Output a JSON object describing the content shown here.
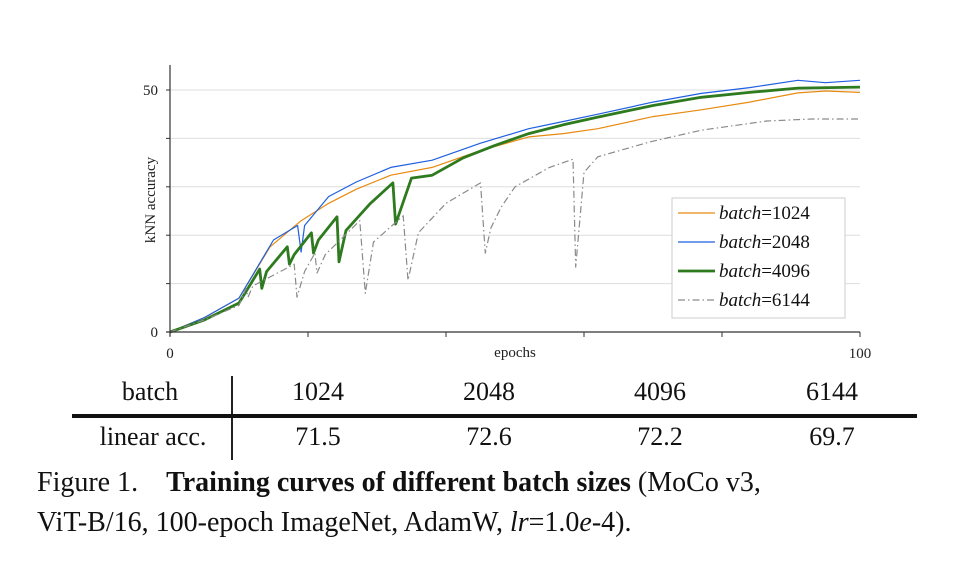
{
  "chart_data": {
    "type": "line",
    "xlabel": "epochs",
    "ylabel": "kNN accuracy",
    "xlim": [
      0,
      100
    ],
    "ylim": [
      0,
      55
    ],
    "x_tick_labels": [
      "0",
      "100"
    ],
    "y_tick_labels": [
      "0",
      "50"
    ],
    "x_ticks": [
      0,
      20,
      40,
      60,
      80,
      100
    ],
    "y_ticks": [
      0,
      10,
      20,
      30,
      40,
      50
    ],
    "grid": "horizontal",
    "legend_position": "bottom-right",
    "series": [
      {
        "name": "batch=1024",
        "name_italic": "batch",
        "name_value": "=1024",
        "color": "#e88a10",
        "style": "solid",
        "points": [
          [
            0,
            0
          ],
          [
            5,
            3
          ],
          [
            10,
            7
          ],
          [
            14.5,
            17.6
          ],
          [
            19,
            23
          ],
          [
            23,
            26.6
          ],
          [
            27,
            29.5
          ],
          [
            32,
            32.4
          ],
          [
            38,
            34
          ],
          [
            45,
            37.5
          ],
          [
            52,
            40.3
          ],
          [
            57,
            41
          ],
          [
            62,
            42
          ],
          [
            70,
            44.5
          ],
          [
            77,
            45.9
          ],
          [
            84,
            47.5
          ],
          [
            91,
            49.4
          ],
          [
            95,
            49.8
          ],
          [
            100,
            49.5
          ]
        ]
      },
      {
        "name": "batch=2048",
        "name_italic": "batch",
        "name_value": "=2048",
        "color": "#1f5fe0",
        "style": "solid",
        "points": [
          [
            0,
            0
          ],
          [
            5,
            3
          ],
          [
            10,
            7
          ],
          [
            15,
            19
          ],
          [
            18.5,
            22
          ],
          [
            19,
            16.5
          ],
          [
            19.5,
            22
          ],
          [
            23,
            28
          ],
          [
            27,
            31
          ],
          [
            32,
            34
          ],
          [
            38,
            35.5
          ],
          [
            45,
            39
          ],
          [
            52,
            42
          ],
          [
            57,
            43.5
          ],
          [
            62,
            45
          ],
          [
            70,
            47.5
          ],
          [
            77,
            49.3
          ],
          [
            84,
            50.5
          ],
          [
            91,
            52
          ],
          [
            95,
            51.5
          ],
          [
            100,
            52
          ]
        ]
      },
      {
        "name": "batch=4096",
        "name_italic": "batch",
        "name_value": "=4096",
        "color": "#2e7a1e",
        "style": "thick",
        "points": [
          [
            0,
            0
          ],
          [
            5,
            2.5
          ],
          [
            10,
            6
          ],
          [
            13,
            13
          ],
          [
            13.3,
            9
          ],
          [
            14,
            12.5
          ],
          [
            17,
            17.6
          ],
          [
            17.3,
            14
          ],
          [
            18,
            16
          ],
          [
            20.5,
            20.5
          ],
          [
            20.8,
            16.3
          ],
          [
            21.5,
            19
          ],
          [
            24.2,
            23.8
          ],
          [
            24.5,
            14.5
          ],
          [
            25.5,
            21
          ],
          [
            29,
            26.5
          ],
          [
            32.3,
            30.8
          ],
          [
            32.7,
            22.3
          ],
          [
            35,
            31.8
          ],
          [
            38,
            32.4
          ],
          [
            42.5,
            36
          ],
          [
            47,
            38.5
          ],
          [
            52,
            41
          ],
          [
            57,
            42.8
          ],
          [
            62,
            44.4
          ],
          [
            70,
            46.8
          ],
          [
            77,
            48.5
          ],
          [
            84,
            49.5
          ],
          [
            91,
            50.4
          ],
          [
            100,
            50.6
          ]
        ]
      },
      {
        "name": "batch=6144",
        "name_italic": "batch",
        "name_value": "=6144",
        "color": "#8a8a8a",
        "style": "dashdot",
        "points": [
          [
            0,
            0
          ],
          [
            5,
            2.5
          ],
          [
            10,
            5.5
          ],
          [
            11,
            9
          ],
          [
            11.3,
            7.2
          ],
          [
            12,
            9.5
          ],
          [
            16,
            12.5
          ],
          [
            18,
            14
          ],
          [
            18.4,
            7.2
          ],
          [
            19.5,
            12.5
          ],
          [
            21,
            16.3
          ],
          [
            21.3,
            12.2
          ],
          [
            22.5,
            16
          ],
          [
            27.5,
            23
          ],
          [
            28.3,
            8
          ],
          [
            29.5,
            18.6
          ],
          [
            33.8,
            24
          ],
          [
            34.5,
            10.7
          ],
          [
            36,
            20.5
          ],
          [
            40,
            26.6
          ],
          [
            45,
            30.8
          ],
          [
            45.7,
            16.3
          ],
          [
            46.5,
            21.5
          ],
          [
            48,
            25.8
          ],
          [
            50,
            30
          ],
          [
            55,
            34
          ],
          [
            58.4,
            35.7
          ],
          [
            58.8,
            13.4
          ],
          [
            60,
            33
          ],
          [
            62,
            36.2
          ],
          [
            69.6,
            39.3
          ],
          [
            77,
            41.7
          ],
          [
            86.5,
            43.6
          ],
          [
            93,
            44
          ],
          [
            100,
            44
          ]
        ]
      }
    ]
  },
  "table": {
    "header_label": "batch",
    "columns": [
      "1024",
      "2048",
      "4096",
      "6144"
    ],
    "row_label": "linear acc.",
    "values": [
      "71.5",
      "72.6",
      "72.2",
      "69.7"
    ]
  },
  "caption": {
    "figure_label": "Figure 1.",
    "title": "Training curves of different batch sizes",
    "text_line1": "(MoCo v3,",
    "text_line2_a": "ViT-B/16, 100-epoch ImageNet, AdamW, ",
    "lr_var": "lr",
    "lr_eq": "=1.0",
    "lr_e": "e",
    "lr_exp": "-4)."
  }
}
